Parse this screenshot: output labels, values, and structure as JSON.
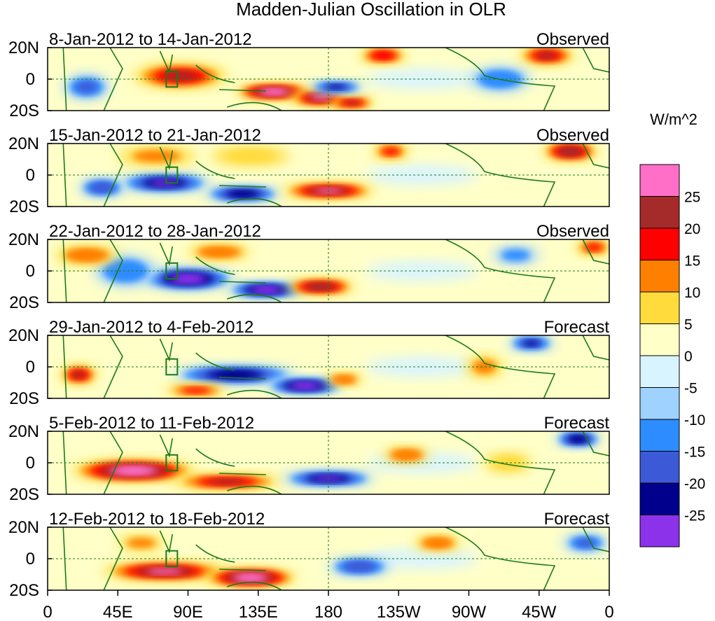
{
  "title": "Madden-Julian Oscillation in OLR",
  "colorbar": {
    "units": "W/m^2",
    "labels": [
      "25",
      "20",
      "15",
      "10",
      "5",
      "0",
      "-5",
      "-10",
      "-15",
      "-20",
      "-25"
    ],
    "colors": [
      "#ff6ec7",
      "#a52a2a",
      "#ff0000",
      "#ff7f00",
      "#ffdc3c",
      "#ffffc8",
      "#d8f4ff",
      "#a0d2ff",
      "#2d8cff",
      "#3c5ad8",
      "#00008c",
      "#8c32eb"
    ]
  },
  "axes": {
    "lat_labels": [
      "20N",
      "0",
      "20S"
    ],
    "lon_labels": [
      "0",
      "45E",
      "90E",
      "135E",
      "180",
      "135W",
      "90W",
      "45W",
      "0"
    ],
    "lon_values": [
      0,
      45,
      90,
      135,
      180,
      225,
      270,
      315,
      360
    ]
  },
  "panels": [
    {
      "dates": "8-Jan-2012 to 14-Jan-2012",
      "status": "Observed",
      "features": [
        {
          "lon": 85,
          "lat": 2,
          "value": 20,
          "rlon": 30,
          "rlat": 8
        },
        {
          "lon": 145,
          "lat": -8,
          "value": 28,
          "rlon": 25,
          "rlat": 5
        },
        {
          "lon": 175,
          "lat": -12,
          "value": 25,
          "rlon": 20,
          "rlat": 5
        },
        {
          "lon": 195,
          "lat": -15,
          "value": 20,
          "rlon": 15,
          "rlat": 4
        },
        {
          "lon": 25,
          "lat": -5,
          "value": -15,
          "rlon": 15,
          "rlat": 8
        },
        {
          "lon": 185,
          "lat": -5,
          "value": -20,
          "rlon": 18,
          "rlat": 4
        },
        {
          "lon": 215,
          "lat": 15,
          "value": 18,
          "rlon": 15,
          "rlat": 5
        },
        {
          "lon": 320,
          "lat": 15,
          "value": 20,
          "rlon": 18,
          "rlat": 6
        },
        {
          "lon": 290,
          "lat": 0,
          "value": -12,
          "rlon": 20,
          "rlat": 8
        }
      ]
    },
    {
      "dates": "15-Jan-2012 to 21-Jan-2012",
      "status": "Observed",
      "features": [
        {
          "lon": 75,
          "lat": -5,
          "value": -25,
          "rlon": 30,
          "rlat": 6
        },
        {
          "lon": 125,
          "lat": -12,
          "value": -22,
          "rlon": 25,
          "rlat": 5
        },
        {
          "lon": 35,
          "lat": -8,
          "value": -18,
          "rlon": 15,
          "rlat": 6
        },
        {
          "lon": 180,
          "lat": -10,
          "value": 25,
          "rlon": 30,
          "rlat": 5
        },
        {
          "lon": 70,
          "lat": 12,
          "value": 10,
          "rlon": 25,
          "rlat": 6
        },
        {
          "lon": 130,
          "lat": 12,
          "value": 8,
          "rlon": 25,
          "rlat": 6
        },
        {
          "lon": 220,
          "lat": 15,
          "value": 15,
          "rlon": 12,
          "rlat": 5
        },
        {
          "lon": 335,
          "lat": 15,
          "value": 22,
          "rlon": 18,
          "rlat": 6
        }
      ]
    },
    {
      "dates": "22-Jan-2012 to 28-Jan-2012",
      "status": "Observed",
      "features": [
        {
          "lon": 90,
          "lat": -5,
          "value": -28,
          "rlon": 30,
          "rlat": 7
        },
        {
          "lon": 140,
          "lat": -12,
          "value": -28,
          "rlon": 25,
          "rlat": 5
        },
        {
          "lon": 50,
          "lat": 0,
          "value": -12,
          "rlon": 20,
          "rlat": 10
        },
        {
          "lon": 175,
          "lat": -10,
          "value": 22,
          "rlon": 22,
          "rlat": 5
        },
        {
          "lon": 25,
          "lat": 10,
          "value": 12,
          "rlon": 20,
          "rlat": 6
        },
        {
          "lon": 110,
          "lat": 12,
          "value": 12,
          "rlon": 20,
          "rlat": 5
        },
        {
          "lon": 350,
          "lat": 15,
          "value": 15,
          "rlon": 12,
          "rlat": 5
        },
        {
          "lon": 300,
          "lat": 10,
          "value": -10,
          "rlon": 15,
          "rlat": 6
        }
      ]
    },
    {
      "dates": "29-Jan-2012 to 4-Feb-2012",
      "status": "Forecast",
      "features": [
        {
          "lon": 20,
          "lat": -5,
          "value": 20,
          "rlon": 12,
          "rlat": 6
        },
        {
          "lon": 120,
          "lat": -5,
          "value": -22,
          "rlon": 40,
          "rlat": 6
        },
        {
          "lon": 165,
          "lat": -12,
          "value": -28,
          "rlon": 25,
          "rlat": 5
        },
        {
          "lon": 95,
          "lat": -15,
          "value": 15,
          "rlon": 20,
          "rlat": 4
        },
        {
          "lon": 190,
          "lat": -8,
          "value": 12,
          "rlon": 12,
          "rlat": 4
        },
        {
          "lon": 310,
          "lat": 15,
          "value": -20,
          "rlon": 15,
          "rlat": 5
        },
        {
          "lon": 280,
          "lat": 0,
          "value": 10,
          "rlon": 12,
          "rlat": 7
        }
      ]
    },
    {
      "dates": "5-Feb-2012 to 11-Feb-2012",
      "status": "Forecast",
      "features": [
        {
          "lon": 55,
          "lat": -5,
          "value": 28,
          "rlon": 40,
          "rlat": 7
        },
        {
          "lon": 115,
          "lat": -12,
          "value": 20,
          "rlon": 35,
          "rlat": 5
        },
        {
          "lon": 180,
          "lat": -10,
          "value": -25,
          "rlon": 30,
          "rlat": 5
        },
        {
          "lon": 230,
          "lat": 5,
          "value": 12,
          "rlon": 15,
          "rlat": 5
        },
        {
          "lon": 340,
          "lat": 15,
          "value": -22,
          "rlon": 15,
          "rlat": 5
        },
        {
          "lon": 295,
          "lat": 0,
          "value": 8,
          "rlon": 15,
          "rlat": 6
        }
      ]
    },
    {
      "dates": "12-Feb-2012 to 18-Feb-2012",
      "status": "Forecast",
      "features": [
        {
          "lon": 75,
          "lat": -8,
          "value": 25,
          "rlon": 40,
          "rlat": 6
        },
        {
          "lon": 130,
          "lat": -12,
          "value": 28,
          "rlon": 30,
          "rlat": 6
        },
        {
          "lon": 60,
          "lat": 10,
          "value": 10,
          "rlon": 15,
          "rlat": 5
        },
        {
          "lon": 200,
          "lat": -5,
          "value": -18,
          "rlon": 20,
          "rlat": 6
        },
        {
          "lon": 250,
          "lat": 10,
          "value": 12,
          "rlon": 15,
          "rlat": 5
        },
        {
          "lon": 345,
          "lat": 10,
          "value": -15,
          "rlon": 15,
          "rlat": 6
        }
      ]
    }
  ]
}
